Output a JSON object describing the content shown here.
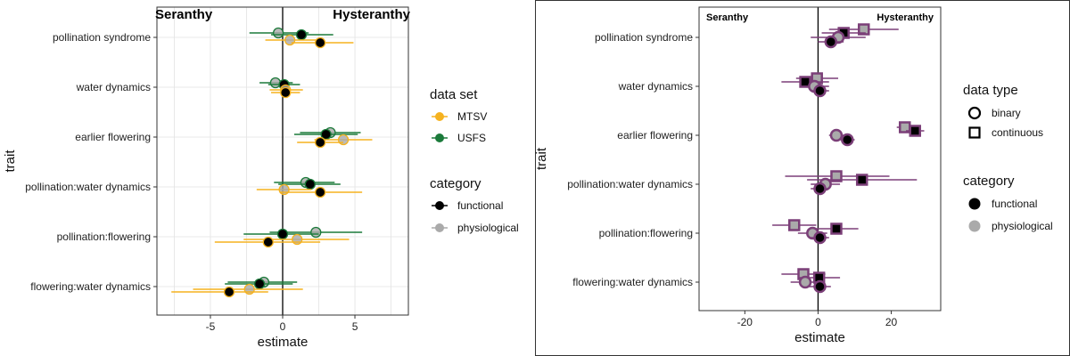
{
  "chart_data": [
    {
      "type": "scatter",
      "subtype": "point-range",
      "xlabel": "estimate",
      "ylabel": "trait",
      "xlim": [
        -8.7,
        8.7
      ],
      "xticks": [
        -5,
        0,
        5
      ],
      "categories": [
        "pollination syndrome",
        "water dynamics",
        "earlier flowering",
        "pollination:water dynamics",
        "pollination:flowering",
        "flowering:water dynamics"
      ],
      "annotations": {
        "left": "Seranthy",
        "right": "Hysteranthy"
      },
      "grid": true,
      "legend_position": "right",
      "legends": [
        {
          "title": "data set",
          "entries": [
            {
              "label": "MTSV",
              "color": "#F5B21F"
            },
            {
              "label": "USFS",
              "color": "#1B7A3A"
            }
          ]
        },
        {
          "title": "category",
          "entries": [
            {
              "label": "functional",
              "color": "#000000"
            },
            {
              "label": "physiological",
              "color": "#AAAAAA"
            }
          ]
        }
      ],
      "series": [
        {
          "dataset": "USFS",
          "category": "physiological",
          "points": [
            {
              "trait": "pollination syndrome",
              "estimate": -0.3,
              "lower": -2.3,
              "upper": 1.8
            },
            {
              "trait": "water dynamics",
              "estimate": -0.5,
              "lower": -1.6,
              "upper": 0.7
            },
            {
              "trait": "earlier flowering",
              "estimate": 3.3,
              "lower": 1.2,
              "upper": 5.4
            },
            {
              "trait": "pollination:water dynamics",
              "estimate": 1.6,
              "lower": -0.6,
              "upper": 3.6
            },
            {
              "trait": "pollination:flowering",
              "estimate": 2.3,
              "lower": -0.9,
              "upper": 5.5
            },
            {
              "trait": "flowering:water dynamics",
              "estimate": -1.3,
              "lower": -3.8,
              "upper": 1.0
            }
          ]
        },
        {
          "dataset": "USFS",
          "category": "functional",
          "points": [
            {
              "trait": "pollination syndrome",
              "estimate": 1.3,
              "lower": -0.8,
              "upper": 3.5
            },
            {
              "trait": "water dynamics",
              "estimate": 0.1,
              "lower": -1.0,
              "upper": 1.2
            },
            {
              "trait": "earlier flowering",
              "estimate": 3.0,
              "lower": 0.8,
              "upper": 5.2
            },
            {
              "trait": "pollination:water dynamics",
              "estimate": 1.9,
              "lower": -0.3,
              "upper": 4.0
            },
            {
              "trait": "pollination:flowering",
              "estimate": 0.0,
              "lower": -2.7,
              "upper": 2.5
            },
            {
              "trait": "flowering:water dynamics",
              "estimate": -1.6,
              "lower": -4.0,
              "upper": 0.7
            }
          ]
        },
        {
          "dataset": "MTSV",
          "category": "physiological",
          "points": [
            {
              "trait": "pollination syndrome",
              "estimate": 0.5,
              "lower": -1.2,
              "upper": 2.4
            },
            {
              "trait": "water dynamics",
              "estimate": 0.2,
              "lower": -0.9,
              "upper": 1.4
            },
            {
              "trait": "earlier flowering",
              "estimate": 4.2,
              "lower": 2.2,
              "upper": 6.2
            },
            {
              "trait": "pollination:water dynamics",
              "estimate": 0.1,
              "lower": -1.8,
              "upper": 2.0
            },
            {
              "trait": "pollination:flowering",
              "estimate": 1.0,
              "lower": -2.7,
              "upper": 4.6
            },
            {
              "trait": "flowering:water dynamics",
              "estimate": -2.3,
              "lower": -6.2,
              "upper": 1.4
            }
          ]
        },
        {
          "dataset": "MTSV",
          "category": "functional",
          "points": [
            {
              "trait": "pollination syndrome",
              "estimate": 2.6,
              "lower": 0.6,
              "upper": 4.9
            },
            {
              "trait": "water dynamics",
              "estimate": 0.2,
              "lower": -0.8,
              "upper": 1.2
            },
            {
              "trait": "earlier flowering",
              "estimate": 2.6,
              "lower": 1.0,
              "upper": 4.2
            },
            {
              "trait": "pollination:water dynamics",
              "estimate": 2.6,
              "lower": -0.2,
              "upper": 5.5
            },
            {
              "trait": "pollination:flowering",
              "estimate": -1.0,
              "lower": -4.7,
              "upper": 2.6
            },
            {
              "trait": "flowering:water dynamics",
              "estimate": -3.7,
              "lower": -7.7,
              "upper": -1.0
            }
          ]
        }
      ]
    },
    {
      "type": "scatter",
      "subtype": "point-range",
      "xlabel": "estimate",
      "ylabel": "trait",
      "xlim": [
        -32.5,
        33.5
      ],
      "xticks": [
        -20,
        0,
        20
      ],
      "categories": [
        "pollination syndrome",
        "water dynamics",
        "earlier flowering",
        "pollination:water dynamics",
        "pollination:flowering",
        "flowering:water dynamics"
      ],
      "annotations": {
        "left": "Seranthy",
        "right": "Hysteranthy"
      },
      "grid": false,
      "legend_position": "right",
      "color": "#7B3F78",
      "legends": [
        {
          "title": "data type",
          "entries": [
            {
              "label": "binary",
              "shape": "circle"
            },
            {
              "label": "continuous",
              "shape": "square"
            }
          ]
        },
        {
          "title": "category",
          "entries": [
            {
              "label": "functional",
              "color": "#000000"
            },
            {
              "label": "physiological",
              "color": "#AAAAAA"
            }
          ]
        }
      ],
      "series": [
        {
          "datatype": "continuous",
          "category": "physiological",
          "points": [
            {
              "trait": "pollination syndrome",
              "estimate": 12.5,
              "lower": 3.0,
              "upper": 22.0
            },
            {
              "trait": "water dynamics",
              "estimate": -0.3,
              "lower": -6.0,
              "upper": 5.5
            },
            {
              "trait": "earlier flowering",
              "estimate": 23.7,
              "lower": 21.5,
              "upper": 26.0
            },
            {
              "trait": "pollination:water dynamics",
              "estimate": 5.0,
              "lower": -9.0,
              "upper": 19.5
            },
            {
              "trait": "pollination:flowering",
              "estimate": -6.5,
              "lower": -12.5,
              "upper": -0.5
            },
            {
              "trait": "flowering:water dynamics",
              "estimate": -4.0,
              "lower": -10.0,
              "upper": 2.0
            }
          ]
        },
        {
          "datatype": "continuous",
          "category": "functional",
          "points": [
            {
              "trait": "pollination syndrome",
              "estimate": 7.0,
              "lower": 1.0,
              "upper": 13.0
            },
            {
              "trait": "water dynamics",
              "estimate": -3.5,
              "lower": -10.0,
              "upper": 3.0
            },
            {
              "trait": "earlier flowering",
              "estimate": 26.5,
              "lower": 24.0,
              "upper": 29.0
            },
            {
              "trait": "pollination:water dynamics",
              "estimate": 12.0,
              "lower": -3.0,
              "upper": 27.0
            },
            {
              "trait": "pollination:flowering",
              "estimate": 5.0,
              "lower": -1.0,
              "upper": 11.0
            },
            {
              "trait": "flowering:water dynamics",
              "estimate": 0.3,
              "lower": -5.5,
              "upper": 6.0
            }
          ]
        },
        {
          "datatype": "binary",
          "category": "physiological",
          "points": [
            {
              "trait": "pollination syndrome",
              "estimate": 5.5,
              "lower": -2.0,
              "upper": 13.0
            },
            {
              "trait": "water dynamics",
              "estimate": -1.0,
              "lower": -5.0,
              "upper": 3.0
            },
            {
              "trait": "earlier flowering",
              "estimate": 5.0,
              "lower": 3.0,
              "upper": 7.0
            },
            {
              "trait": "pollination:water dynamics",
              "estimate": 2.0,
              "lower": -2.0,
              "upper": 6.0
            },
            {
              "trait": "pollination:flowering",
              "estimate": -1.5,
              "lower": -5.5,
              "upper": 2.5
            },
            {
              "trait": "flowering:water dynamics",
              "estimate": -3.5,
              "lower": -7.5,
              "upper": 0.5
            }
          ]
        },
        {
          "datatype": "binary",
          "category": "functional",
          "points": [
            {
              "trait": "pollination syndrome",
              "estimate": 3.5,
              "lower": 0.0,
              "upper": 7.0
            },
            {
              "trait": "water dynamics",
              "estimate": 0.5,
              "lower": -2.0,
              "upper": 3.0
            },
            {
              "trait": "earlier flowering",
              "estimate": 8.0,
              "lower": 6.0,
              "upper": 10.0
            },
            {
              "trait": "pollination:water dynamics",
              "estimate": 0.5,
              "lower": -2.0,
              "upper": 3.0
            },
            {
              "trait": "pollination:flowering",
              "estimate": 0.5,
              "lower": -2.0,
              "upper": 3.0
            },
            {
              "trait": "flowering:water dynamics",
              "estimate": 0.5,
              "lower": -2.5,
              "upper": 3.5
            }
          ]
        }
      ]
    }
  ]
}
